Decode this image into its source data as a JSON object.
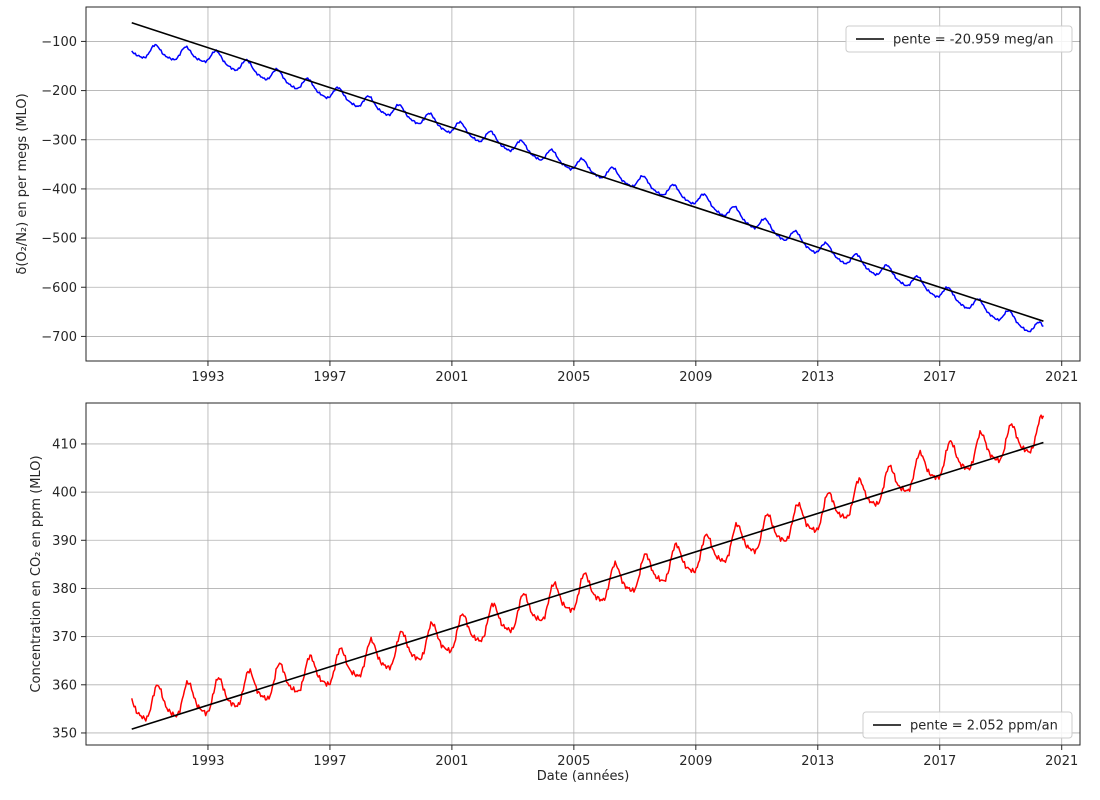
{
  "chart_data": [
    {
      "type": "line",
      "xlabel": "",
      "ylabel": "δ(O₂/N₂) en per megs (MLO)",
      "xlim": [
        1989.0,
        2021.6
      ],
      "ylim": [
        -750,
        -30
      ],
      "xticks": [
        1993,
        1997,
        2001,
        2005,
        2009,
        2013,
        2017,
        2021
      ],
      "xtick_labels": [
        "1993",
        "1997",
        "2001",
        "2005",
        "2009",
        "2013",
        "2017",
        "2021"
      ],
      "yticks": [
        -700,
        -600,
        -500,
        -400,
        -300,
        -200,
        -100
      ],
      "ytick_labels": [
        "−700",
        "−600",
        "−500",
        "−400",
        "−300",
        "−200",
        "−100"
      ],
      "grid": true,
      "legend_position": "top-right",
      "series": [
        {
          "name": "",
          "color": "#0000ff",
          "kind": "seasonal",
          "x_start": 1990.5,
          "x_end": 2020.4,
          "base": [
            [
              1990.5,
              -120
            ],
            [
              1993.0,
              -130
            ],
            [
              1997.0,
              -205
            ],
            [
              2001.0,
              -275
            ],
            [
              2005.0,
              -350
            ],
            [
              2009.0,
              -420
            ],
            [
              2013.0,
              -520
            ],
            [
              2017.0,
              -610
            ],
            [
              2020.4,
              -690
            ]
          ],
          "amplitude": 13,
          "peak_phase": 0.3,
          "points_per_year": 26
        },
        {
          "name": "pente = -20.959 meg/an",
          "color": "#000000",
          "kind": "trend",
          "x": [
            1990.5,
            2020.4
          ],
          "y": [
            -62,
            -669
          ]
        }
      ],
      "legend": [
        {
          "label": "pente = -20.959 meg/an",
          "color": "#000000"
        }
      ]
    },
    {
      "type": "line",
      "xlabel": "Date (années)",
      "ylabel": "Concentration en CO₂ en ppm (MLO)",
      "xlim": [
        1989.0,
        2021.6
      ],
      "ylim": [
        347.5,
        418.5
      ],
      "xticks": [
        1993,
        1997,
        2001,
        2005,
        2009,
        2013,
        2017,
        2021
      ],
      "xtick_labels": [
        "1993",
        "1997",
        "2001",
        "2005",
        "2009",
        "2013",
        "2017",
        "2021"
      ],
      "yticks": [
        350,
        360,
        370,
        380,
        390,
        400,
        410
      ],
      "ytick_labels": [
        "350",
        "360",
        "370",
        "380",
        "390",
        "400",
        "410"
      ],
      "grid": true,
      "legend_position": "bottom-right",
      "series": [
        {
          "name": "",
          "color": "#ff0000",
          "kind": "seasonal",
          "x_start": 1990.5,
          "x_end": 2020.4,
          "base": [
            [
              1990.5,
              355.5
            ],
            [
              1993.0,
              357.0
            ],
            [
              1997.0,
              363.0
            ],
            [
              2001.0,
              370.0
            ],
            [
              2005.0,
              378.5
            ],
            [
              2009.0,
              386.5
            ],
            [
              2013.0,
              395.0
            ],
            [
              2017.0,
              406.0
            ],
            [
              2020.4,
              412.0
            ]
          ],
          "amplitude": 3.2,
          "peak_phase": 0.37,
          "points_per_year": 26
        },
        {
          "name": "pente = 2.052 ppm/an",
          "color": "#000000",
          "kind": "trend",
          "x": [
            1990.5,
            2020.4
          ],
          "y": [
            350.8,
            410.3
          ]
        }
      ],
      "legend": [
        {
          "label": "pente = 2.052 ppm/an",
          "color": "#000000"
        }
      ]
    }
  ]
}
